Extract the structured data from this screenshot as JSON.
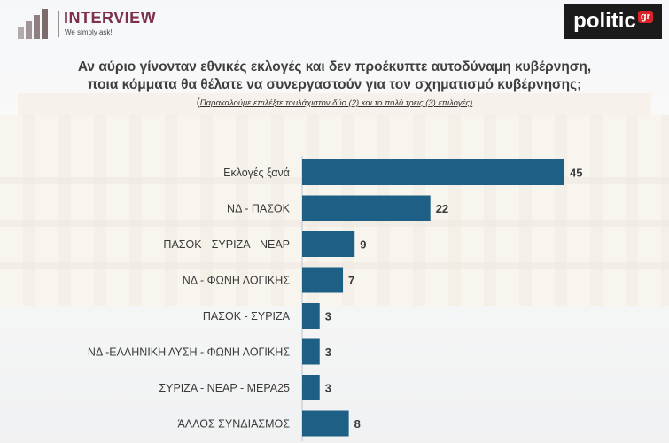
{
  "header": {
    "logo_name": "INTERVIEW",
    "logo_tagline": "We simply ask!",
    "brand_right": "politic",
    "brand_right_suffix": "gr"
  },
  "question": {
    "line1": "Αν αύριο γίνονταν εθνικές εκλογές και δεν προέκυπτε αυτοδύναμη κυβέρνηση,",
    "line2": "ποια κόμματα θα θέλατε να συνεργαστούν για τον σχηματισμό κυβέρνησης;",
    "note_open": "(",
    "note": "Παρακαλούμε επιλέξτε τουλάχιστον δύο (2) και το πολύ τρεις (3) επιλογές)"
  },
  "colors": {
    "bar": "#1d5f85",
    "title": "#3f3f3f",
    "logo": "#7e2f4a"
  },
  "chart_data": {
    "type": "bar",
    "orientation": "horizontal",
    "categories": [
      "Εκλογές ξανά",
      "ΝΔ - ΠΑΣΟΚ",
      "ΠΑΣΟΚ - ΣΥΡΙΖΑ - ΝΕΑΡ",
      "ΝΔ - ΦΩΝΗ ΛΟΓΙΚΗΣ",
      "ΠΑΣΟΚ - ΣΥΡΙΖΑ",
      "ΝΔ -ΕΛΛΗΝΙΚΗ ΛΥΣΗ - ΦΩΝΗ ΛΟΓΙΚΗΣ",
      "ΣΥΡΙΖΑ - ΝΕΑΡ - ΜΕΡΑ25",
      "ΆΛΛΟΣ ΣΥΝΔΙΑΣΜΟΣ"
    ],
    "values": [
      45,
      22,
      9,
      7,
      3,
      3,
      3,
      8
    ],
    "xlim": [
      0,
      45
    ],
    "grid": false,
    "legend": "none"
  }
}
